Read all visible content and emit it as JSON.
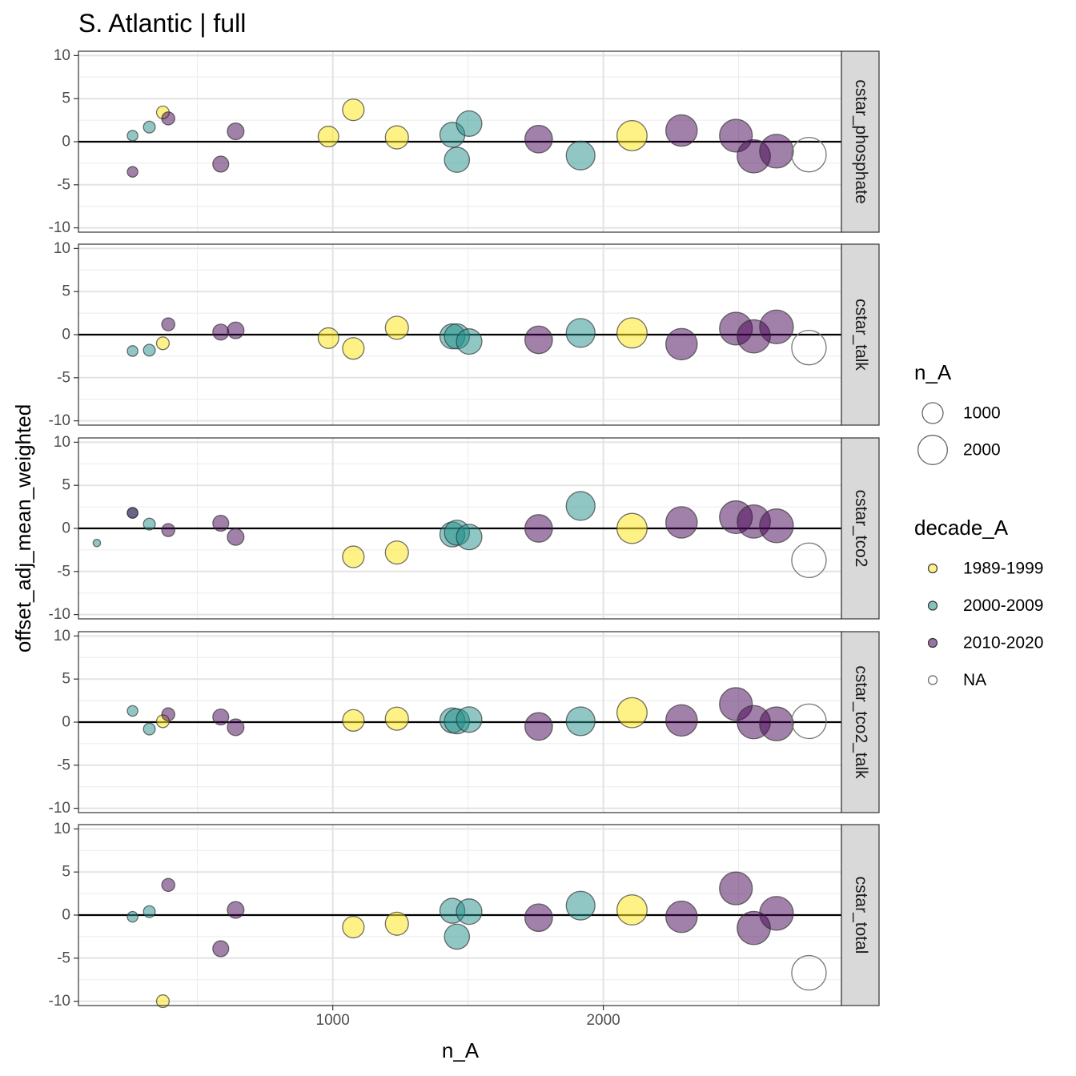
{
  "chart_data": {
    "type": "scatter",
    "title": "S. Atlantic | full",
    "xlabel": "n_A",
    "ylabel": "offset_adj_mean_weighted",
    "xlim": [
      60,
      2880
    ],
    "ylim": [
      -10.5,
      10.5
    ],
    "x_ticks": [
      1000,
      2000
    ],
    "x_tick_labels": [
      "1000",
      "2000"
    ],
    "y_ticks": [
      10,
      5,
      0,
      -5,
      -10
    ],
    "y_tick_labels": [
      "10",
      "5",
      "0",
      "-5",
      "-10"
    ],
    "hline": 0,
    "grid": true,
    "size_legend": {
      "title": "n_A",
      "values": [
        1000,
        2000
      ],
      "labels": [
        "1000",
        "2000"
      ]
    },
    "color_legend": {
      "title": "decade_A",
      "entries": [
        {
          "label": "1989-1999",
          "color": "#FDE725"
        },
        {
          "label": "2000-2009",
          "color": "#21908C"
        },
        {
          "label": "2010-2020",
          "color": "#440154"
        },
        {
          "label": "NA",
          "color": "none"
        }
      ]
    },
    "panels": [
      {
        "label": "cstar_phosphate",
        "points": [
          {
            "x": 260,
            "y": 0.7,
            "d": "2000-2009"
          },
          {
            "x": 260,
            "y": -3.5,
            "d": "2010-2020"
          },
          {
            "x": 322,
            "y": 1.7,
            "d": "2000-2009"
          },
          {
            "x": 372,
            "y": 3.4,
            "d": "1989-1999"
          },
          {
            "x": 392,
            "y": 2.7,
            "d": "2010-2020"
          },
          {
            "x": 586,
            "y": -2.6,
            "d": "2010-2020"
          },
          {
            "x": 641,
            "y": 1.2,
            "d": "2010-2020"
          },
          {
            "x": 984,
            "y": 0.6,
            "d": "1989-1999"
          },
          {
            "x": 1076,
            "y": 3.7,
            "d": "1989-1999"
          },
          {
            "x": 1237,
            "y": 0.5,
            "d": "1989-1999"
          },
          {
            "x": 1442,
            "y": 0.8,
            "d": "2000-2009"
          },
          {
            "x": 1459,
            "y": -2.1,
            "d": "2000-2009"
          },
          {
            "x": 1504,
            "y": 2.1,
            "d": "2000-2009"
          },
          {
            "x": 1761,
            "y": 0.3,
            "d": "2010-2020"
          },
          {
            "x": 1916,
            "y": -1.6,
            "d": "2000-2009"
          },
          {
            "x": 2106,
            "y": 0.7,
            "d": "1989-1999"
          },
          {
            "x": 2289,
            "y": 1.3,
            "d": "2010-2020"
          },
          {
            "x": 2490,
            "y": 0.7,
            "d": "2010-2020"
          },
          {
            "x": 2556,
            "y": -1.7,
            "d": "2010-2020"
          },
          {
            "x": 2640,
            "y": -1.1,
            "d": "2010-2020"
          },
          {
            "x": 2760,
            "y": -1.5,
            "d": "NA"
          }
        ]
      },
      {
        "label": "cstar_talk",
        "points": [
          {
            "x": 260,
            "y": -1.9,
            "d": "2000-2009"
          },
          {
            "x": 322,
            "y": -1.8,
            "d": "2000-2009"
          },
          {
            "x": 372,
            "y": -1.0,
            "d": "1989-1999"
          },
          {
            "x": 392,
            "y": 1.2,
            "d": "2010-2020"
          },
          {
            "x": 586,
            "y": 0.3,
            "d": "2010-2020"
          },
          {
            "x": 641,
            "y": 0.5,
            "d": "2010-2020"
          },
          {
            "x": 984,
            "y": -0.4,
            "d": "1989-1999"
          },
          {
            "x": 1076,
            "y": -1.6,
            "d": "1989-1999"
          },
          {
            "x": 1237,
            "y": 0.8,
            "d": "1989-1999"
          },
          {
            "x": 1442,
            "y": -0.2,
            "d": "2000-2009"
          },
          {
            "x": 1459,
            "y": -0.2,
            "d": "2000-2009"
          },
          {
            "x": 1504,
            "y": -0.8,
            "d": "2000-2009"
          },
          {
            "x": 1761,
            "y": -0.6,
            "d": "2010-2020"
          },
          {
            "x": 1916,
            "y": 0.2,
            "d": "2000-2009"
          },
          {
            "x": 2106,
            "y": 0.2,
            "d": "1989-1999"
          },
          {
            "x": 2289,
            "y": -1.1,
            "d": "2010-2020"
          },
          {
            "x": 2490,
            "y": 0.7,
            "d": "2010-2020"
          },
          {
            "x": 2556,
            "y": -0.2,
            "d": "2010-2020"
          },
          {
            "x": 2640,
            "y": 0.9,
            "d": "2010-2020"
          },
          {
            "x": 2760,
            "y": -1.5,
            "d": "NA"
          }
        ]
      },
      {
        "label": "cstar_tco2",
        "points": [
          {
            "x": 128,
            "y": -1.7,
            "d": "2000-2009"
          },
          {
            "x": 260,
            "y": 1.8,
            "d": "2000-2009"
          },
          {
            "x": 260,
            "y": 1.8,
            "d": "2010-2020"
          },
          {
            "x": 322,
            "y": 0.5,
            "d": "2000-2009"
          },
          {
            "x": 392,
            "y": -0.2,
            "d": "2010-2020"
          },
          {
            "x": 586,
            "y": 0.6,
            "d": "2010-2020"
          },
          {
            "x": 641,
            "y": -1.0,
            "d": "2010-2020"
          },
          {
            "x": 1076,
            "y": -3.3,
            "d": "1989-1999"
          },
          {
            "x": 1237,
            "y": -2.8,
            "d": "1989-1999"
          },
          {
            "x": 1442,
            "y": -0.7,
            "d": "2000-2009"
          },
          {
            "x": 1459,
            "y": -0.5,
            "d": "2000-2009"
          },
          {
            "x": 1504,
            "y": -1.0,
            "d": "2000-2009"
          },
          {
            "x": 1761,
            "y": 0.0,
            "d": "2010-2020"
          },
          {
            "x": 1916,
            "y": 2.6,
            "d": "2000-2009"
          },
          {
            "x": 2106,
            "y": 0.0,
            "d": "1989-1999"
          },
          {
            "x": 2289,
            "y": 0.7,
            "d": "2010-2020"
          },
          {
            "x": 2490,
            "y": 1.3,
            "d": "2010-2020"
          },
          {
            "x": 2556,
            "y": 0.8,
            "d": "2010-2020"
          },
          {
            "x": 2640,
            "y": 0.3,
            "d": "2010-2020"
          },
          {
            "x": 2760,
            "y": -3.7,
            "d": "NA"
          }
        ]
      },
      {
        "label": "cstar_tco2_talk",
        "points": [
          {
            "x": 260,
            "y": 1.3,
            "d": "2000-2009"
          },
          {
            "x": 322,
            "y": -0.8,
            "d": "2000-2009"
          },
          {
            "x": 372,
            "y": 0.1,
            "d": "1989-1999"
          },
          {
            "x": 392,
            "y": 0.9,
            "d": "2010-2020"
          },
          {
            "x": 586,
            "y": 0.6,
            "d": "2010-2020"
          },
          {
            "x": 641,
            "y": -0.6,
            "d": "2010-2020"
          },
          {
            "x": 1076,
            "y": 0.2,
            "d": "1989-1999"
          },
          {
            "x": 1237,
            "y": 0.4,
            "d": "1989-1999"
          },
          {
            "x": 1442,
            "y": 0.2,
            "d": "2000-2009"
          },
          {
            "x": 1459,
            "y": 0.1,
            "d": "2000-2009"
          },
          {
            "x": 1504,
            "y": 0.3,
            "d": "2000-2009"
          },
          {
            "x": 1761,
            "y": -0.5,
            "d": "2010-2020"
          },
          {
            "x": 1916,
            "y": 0.1,
            "d": "2000-2009"
          },
          {
            "x": 2106,
            "y": 1.1,
            "d": "1989-1999"
          },
          {
            "x": 2289,
            "y": 0.2,
            "d": "2010-2020"
          },
          {
            "x": 2490,
            "y": 2.1,
            "d": "2010-2020"
          },
          {
            "x": 2556,
            "y": 0.0,
            "d": "2010-2020"
          },
          {
            "x": 2640,
            "y": -0.2,
            "d": "2010-2020"
          },
          {
            "x": 2760,
            "y": 0.1,
            "d": "NA"
          }
        ]
      },
      {
        "label": "cstar_total",
        "points": [
          {
            "x": 260,
            "y": -0.2,
            "d": "2000-2009"
          },
          {
            "x": 322,
            "y": 0.4,
            "d": "2000-2009"
          },
          {
            "x": 372,
            "y": -10.0,
            "d": "1989-1999"
          },
          {
            "x": 392,
            "y": 3.5,
            "d": "2010-2020"
          },
          {
            "x": 586,
            "y": -3.9,
            "d": "2010-2020"
          },
          {
            "x": 641,
            "y": 0.6,
            "d": "2010-2020"
          },
          {
            "x": 1076,
            "y": -1.4,
            "d": "1989-1999"
          },
          {
            "x": 1237,
            "y": -1.0,
            "d": "1989-1999"
          },
          {
            "x": 1442,
            "y": 0.5,
            "d": "2000-2009"
          },
          {
            "x": 1459,
            "y": -2.5,
            "d": "2000-2009"
          },
          {
            "x": 1504,
            "y": 0.4,
            "d": "2000-2009"
          },
          {
            "x": 1761,
            "y": -0.3,
            "d": "2010-2020"
          },
          {
            "x": 1916,
            "y": 1.1,
            "d": "2000-2009"
          },
          {
            "x": 2106,
            "y": 0.6,
            "d": "1989-1999"
          },
          {
            "x": 2289,
            "y": -0.2,
            "d": "2010-2020"
          },
          {
            "x": 2490,
            "y": 3.1,
            "d": "2010-2020"
          },
          {
            "x": 2556,
            "y": -1.5,
            "d": "2010-2020"
          },
          {
            "x": 2640,
            "y": 0.2,
            "d": "2010-2020"
          },
          {
            "x": 2760,
            "y": -6.7,
            "d": "NA"
          }
        ]
      }
    ]
  }
}
